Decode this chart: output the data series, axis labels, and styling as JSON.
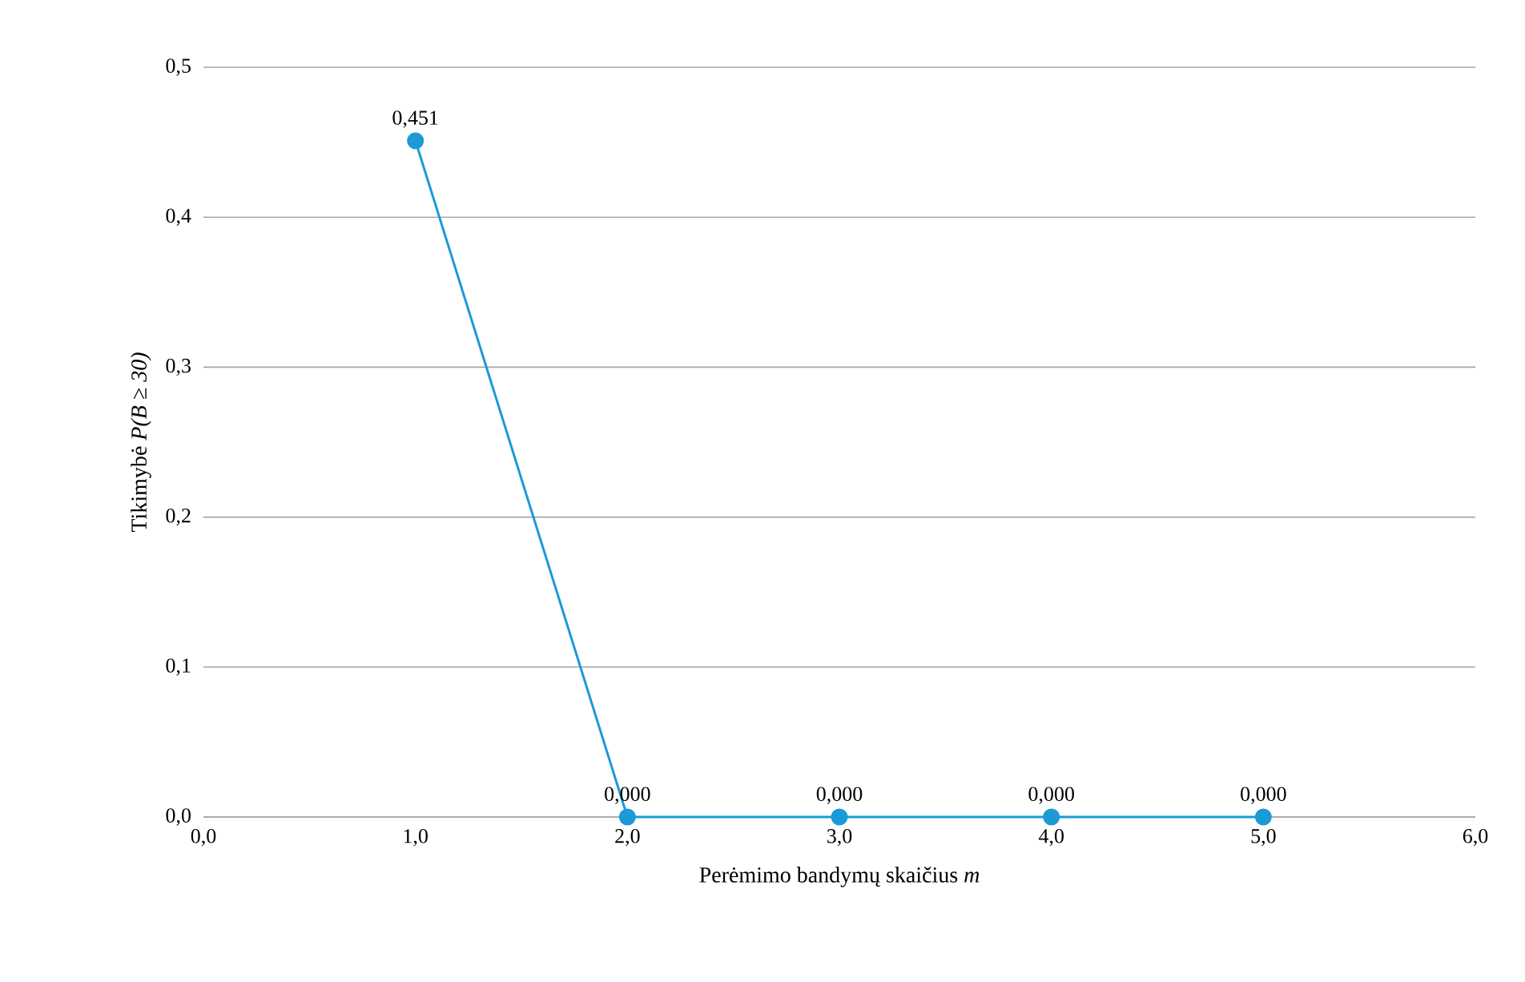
{
  "chart_data": {
    "type": "line",
    "xlabel": "Perėmimo bandymų skaičius *m*",
    "ylabel": "Tikimybė  *P(B ≥ 30)*",
    "x": [
      1,
      2,
      3,
      4,
      5
    ],
    "values": [
      0.451,
      0,
      0,
      0,
      0
    ],
    "value_labels": [
      "0,451",
      "0,000",
      "0,000",
      "0,000",
      "0,000"
    ],
    "color": "#1b9ad6",
    "xlim": [
      0,
      6
    ],
    "ylim": [
      0,
      0.5
    ],
    "xticks": [
      {
        "value": 0,
        "label": "0,0"
      },
      {
        "value": 1,
        "label": "1,0"
      },
      {
        "value": 2,
        "label": "2,0"
      },
      {
        "value": 3,
        "label": "3,0"
      },
      {
        "value": 4,
        "label": "4,0"
      },
      {
        "value": 5,
        "label": "5,0"
      },
      {
        "value": 6,
        "label": "6,0"
      }
    ],
    "yticks": [
      {
        "value": 0,
        "label": "0,0"
      },
      {
        "value": 0.1,
        "label": "0,1"
      },
      {
        "value": 0.2,
        "label": "0,2"
      },
      {
        "value": 0.3,
        "label": "0,3"
      },
      {
        "value": 0.4,
        "label": "0,4"
      },
      {
        "value": 0.5,
        "label": "0,5"
      }
    ],
    "grid": "y",
    "marker": "circle"
  }
}
